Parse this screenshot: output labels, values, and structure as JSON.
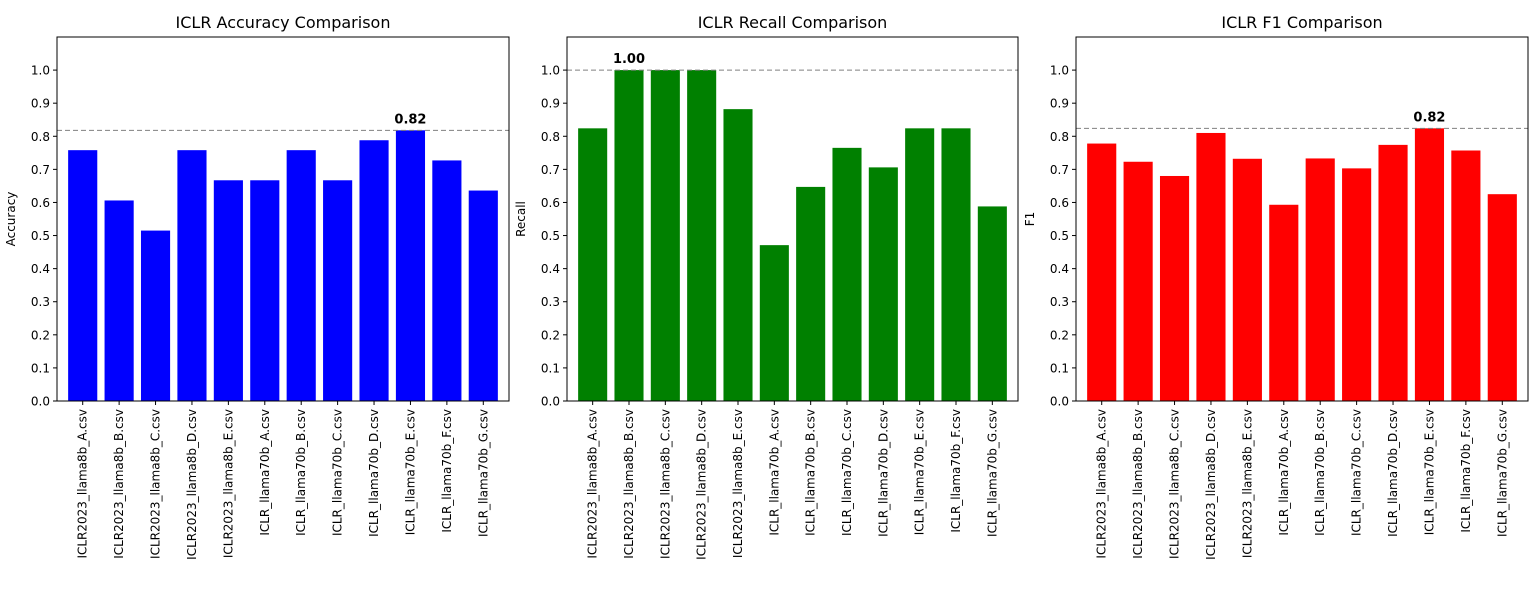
{
  "chart_data": [
    {
      "type": "bar",
      "title": "ICLR Accuracy Comparison",
      "xlabel": "",
      "ylabel": "Accuracy",
      "ylim": [
        0,
        1.1
      ],
      "yticks": [
        "0.0",
        "0.1",
        "0.2",
        "0.3",
        "0.4",
        "0.5",
        "0.6",
        "0.7",
        "0.8",
        "0.9",
        "1.0"
      ],
      "color": "#0000ff",
      "categories": [
        "ICLR2023_llama8b_A.csv",
        "ICLR2023_llama8b_B.csv",
        "ICLR2023_llama8b_C.csv",
        "ICLR2023_llama8b_D.csv",
        "ICLR2023_llama8b_E.csv",
        "ICLR_llama70b_A.csv",
        "ICLR_llama70b_B.csv",
        "ICLR_llama70b_C.csv",
        "ICLR_llama70b_D.csv",
        "ICLR_llama70b_E.csv",
        "ICLR_llama70b_F.csv",
        "ICLR_llama70b_G.csv"
      ],
      "values": [
        0.758,
        0.606,
        0.515,
        0.758,
        0.667,
        0.667,
        0.758,
        0.667,
        0.788,
        0.818,
        0.727,
        0.636
      ],
      "reference_line": 0.818,
      "max_label": "0.82",
      "max_index": 9
    },
    {
      "type": "bar",
      "title": "ICLR Recall Comparison",
      "xlabel": "",
      "ylabel": "Recall",
      "ylim": [
        0,
        1.1
      ],
      "yticks": [
        "0.0",
        "0.1",
        "0.2",
        "0.3",
        "0.4",
        "0.5",
        "0.6",
        "0.7",
        "0.8",
        "0.9",
        "1.0"
      ],
      "color": "#008000",
      "categories": [
        "ICLR2023_llama8b_A.csv",
        "ICLR2023_llama8b_B.csv",
        "ICLR2023_llama8b_C.csv",
        "ICLR2023_llama8b_D.csv",
        "ICLR2023_llama8b_E.csv",
        "ICLR_llama70b_A.csv",
        "ICLR_llama70b_B.csv",
        "ICLR_llama70b_C.csv",
        "ICLR_llama70b_D.csv",
        "ICLR_llama70b_E.csv",
        "ICLR_llama70b_F.csv",
        "ICLR_llama70b_G.csv"
      ],
      "values": [
        0.824,
        1.0,
        1.0,
        1.0,
        0.882,
        0.471,
        0.647,
        0.765,
        0.706,
        0.824,
        0.824,
        0.588
      ],
      "reference_line": 1.0,
      "max_label": "1.00",
      "max_index": 1
    },
    {
      "type": "bar",
      "title": "ICLR F1 Comparison",
      "xlabel": "",
      "ylabel": "F1",
      "ylim": [
        0,
        1.1
      ],
      "yticks": [
        "0.0",
        "0.1",
        "0.2",
        "0.3",
        "0.4",
        "0.5",
        "0.6",
        "0.7",
        "0.8",
        "0.9",
        "1.0"
      ],
      "color": "#ff0000",
      "categories": [
        "ICLR2023_llama8b_A.csv",
        "ICLR2023_llama8b_B.csv",
        "ICLR2023_llama8b_C.csv",
        "ICLR2023_llama8b_D.csv",
        "ICLR2023_llama8b_E.csv",
        "ICLR_llama70b_A.csv",
        "ICLR_llama70b_B.csv",
        "ICLR_llama70b_C.csv",
        "ICLR_llama70b_D.csv",
        "ICLR_llama70b_E.csv",
        "ICLR_llama70b_F.csv",
        "ICLR_llama70b_G.csv"
      ],
      "values": [
        0.778,
        0.723,
        0.68,
        0.81,
        0.732,
        0.593,
        0.733,
        0.703,
        0.774,
        0.824,
        0.757,
        0.625
      ],
      "reference_line": 0.824,
      "max_label": "0.82",
      "max_index": 9
    }
  ]
}
